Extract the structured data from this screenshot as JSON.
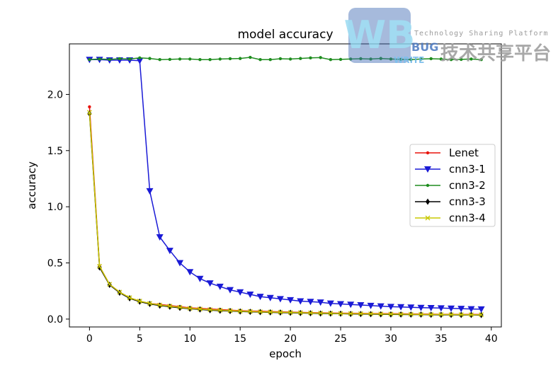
{
  "chart_data": {
    "type": "line",
    "title": "model accuracy",
    "xlabel": "epoch",
    "ylabel": "accuracy",
    "xlim": [
      -2,
      41
    ],
    "ylim": [
      -0.07,
      2.45
    ],
    "xticks": [
      0,
      5,
      10,
      15,
      20,
      25,
      30,
      35,
      40
    ],
    "yticks": [
      0.0,
      0.5,
      1.0,
      1.5,
      2.0
    ],
    "xtick_labels": [
      "0",
      "5",
      "10",
      "15",
      "20",
      "25",
      "30",
      "35",
      "40"
    ],
    "ytick_labels": [
      "0.0",
      "0.5",
      "1.0",
      "1.5",
      "2.0"
    ],
    "legend_position": "center-right",
    "x": [
      0,
      1,
      2,
      3,
      4,
      5,
      6,
      7,
      8,
      9,
      10,
      11,
      12,
      13,
      14,
      15,
      16,
      17,
      18,
      19,
      20,
      21,
      22,
      23,
      24,
      25,
      26,
      27,
      28,
      29,
      30,
      31,
      32,
      33,
      34,
      35,
      36,
      37,
      38,
      39
    ],
    "series": [
      {
        "name": "Lenet",
        "color": "#e8140c",
        "marker": "dot",
        "values": [
          1.89,
          0.47,
          0.31,
          0.24,
          0.19,
          0.16,
          0.14,
          0.13,
          0.12,
          0.11,
          0.1,
          0.095,
          0.09,
          0.085,
          0.08,
          0.075,
          0.072,
          0.07,
          0.067,
          0.065,
          0.062,
          0.06,
          0.058,
          0.056,
          0.055,
          0.053,
          0.052,
          0.051,
          0.05,
          0.049,
          0.048,
          0.047,
          0.046,
          0.045,
          0.044,
          0.043,
          0.043,
          0.042,
          0.042,
          0.041
        ]
      },
      {
        "name": "cnn3-1",
        "color": "#1a1ad6",
        "marker": "triangle-down",
        "values": [
          2.31,
          2.31,
          2.305,
          2.305,
          2.305,
          2.3,
          1.14,
          0.73,
          0.61,
          0.5,
          0.42,
          0.36,
          0.32,
          0.29,
          0.26,
          0.24,
          0.22,
          0.2,
          0.19,
          0.18,
          0.17,
          0.16,
          0.155,
          0.15,
          0.14,
          0.135,
          0.13,
          0.125,
          0.12,
          0.115,
          0.11,
          0.108,
          0.105,
          0.102,
          0.1,
          0.098,
          0.095,
          0.093,
          0.09,
          0.088
        ]
      },
      {
        "name": "cnn3-2",
        "color": "#1e8c1e",
        "marker": "dot",
        "values": [
          2.31,
          2.315,
          2.312,
          2.318,
          2.315,
          2.325,
          2.32,
          2.31,
          2.312,
          2.315,
          2.315,
          2.31,
          2.31,
          2.315,
          2.318,
          2.32,
          2.33,
          2.31,
          2.31,
          2.318,
          2.315,
          2.32,
          2.325,
          2.328,
          2.31,
          2.312,
          2.315,
          2.318,
          2.315,
          2.32,
          2.315,
          2.312,
          2.31,
          2.315,
          2.318,
          2.315,
          2.31,
          2.312,
          2.315,
          2.31
        ]
      },
      {
        "name": "cnn3-3",
        "color": "#000000",
        "marker": "diamond",
        "values": [
          1.83,
          0.46,
          0.305,
          0.235,
          0.185,
          0.155,
          0.135,
          0.12,
          0.11,
          0.1,
          0.092,
          0.086,
          0.08,
          0.075,
          0.072,
          0.068,
          0.065,
          0.062,
          0.06,
          0.058,
          0.056,
          0.054,
          0.052,
          0.05,
          0.049,
          0.048,
          0.046,
          0.045,
          0.044,
          0.043,
          0.042,
          0.041,
          0.04,
          0.04,
          0.039,
          0.038,
          0.038,
          0.037,
          0.037,
          0.036
        ]
      },
      {
        "name": "cnn3-4",
        "color": "#c8c800",
        "marker": "x",
        "values": [
          1.84,
          0.47,
          0.31,
          0.24,
          0.19,
          0.16,
          0.14,
          0.125,
          0.115,
          0.105,
          0.096,
          0.09,
          0.084,
          0.079,
          0.075,
          0.071,
          0.068,
          0.065,
          0.063,
          0.061,
          0.059,
          0.057,
          0.055,
          0.053,
          0.052,
          0.05,
          0.049,
          0.048,
          0.047,
          0.046,
          0.045,
          0.044,
          0.043,
          0.042,
          0.041,
          0.041,
          0.04,
          0.04,
          0.039,
          0.039
        ]
      }
    ]
  },
  "watermark": {
    "big_letters": "WB",
    "line1": "BUG",
    "line2": "WRITE",
    "tagline": "Technology Sharing Platform",
    "chinese": "技术共享平台"
  }
}
